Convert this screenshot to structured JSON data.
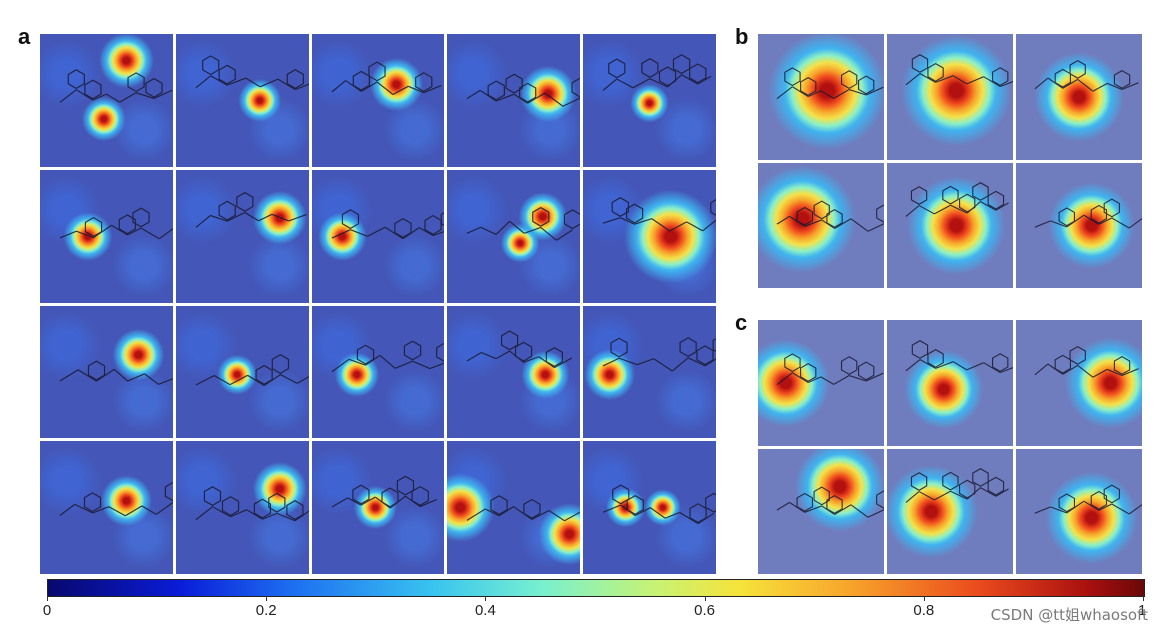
{
  "panels": {
    "a": {
      "label": "a",
      "rows": 4,
      "cols": 5
    },
    "b": {
      "label": "b",
      "rows": 2,
      "cols": 3
    },
    "c": {
      "label": "c",
      "rows": 2,
      "cols": 3
    }
  },
  "colorbar": {
    "ticks": [
      "0",
      "0.2",
      "0.4",
      "0.6",
      "0.8",
      "1"
    ],
    "tick_values": [
      0,
      0.2,
      0.4,
      0.6,
      0.8,
      1.0
    ],
    "gradient": [
      "#08086e",
      "#0a1cd8",
      "#1d6cf0",
      "#38c3f0",
      "#77f0d0",
      "#c4f377",
      "#f6e43b",
      "#f8a52b",
      "#ea4a1d",
      "#a80f0f",
      "#6b0808"
    ]
  },
  "watermark": "CSDN @tt姐whaosoft"
}
